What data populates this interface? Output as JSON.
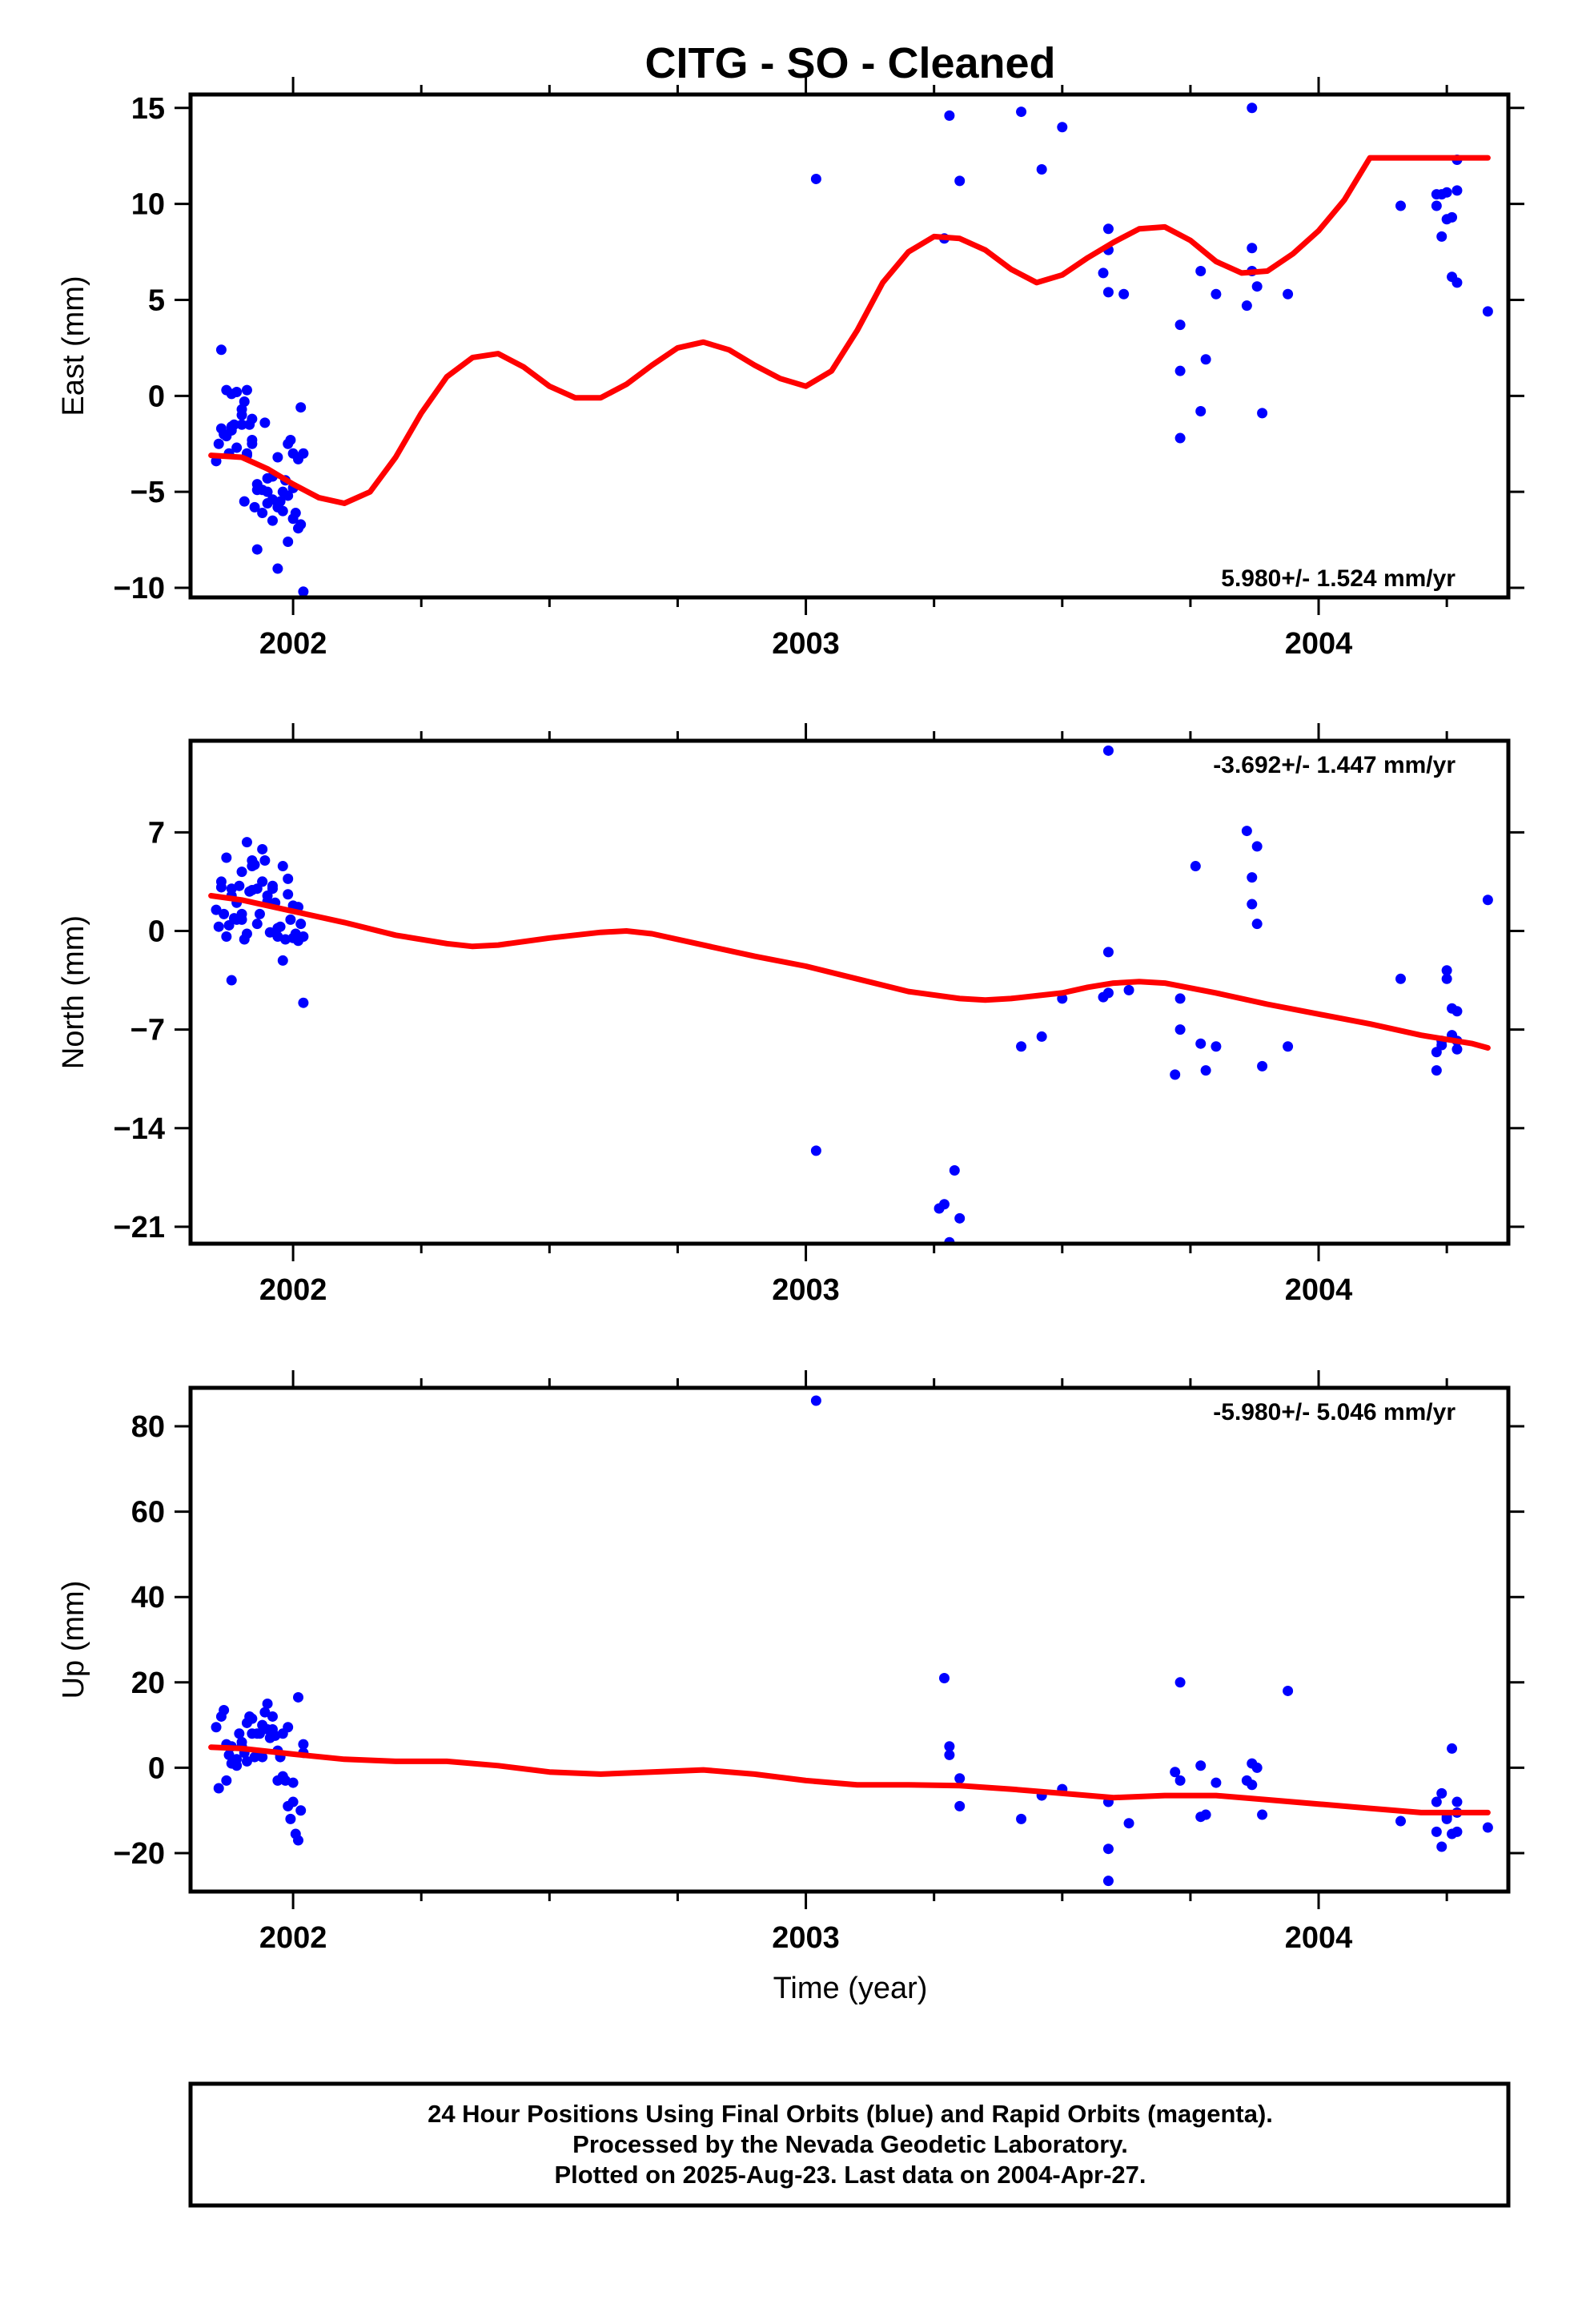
{
  "title": "CITG  - SO - Cleaned",
  "xlabel": "Time (year)",
  "footer": {
    "line1": "24 Hour Positions Using Final Orbits (blue) and Rapid Orbits (magenta).",
    "line2": "Processed by the Nevada Geodetic Laboratory.",
    "line3": "Plotted on 2025-Aug-23. Last data on 2004-Apr-27."
  },
  "colors": {
    "points": "#0000ff",
    "fit": "#ff0000",
    "frame": "#000000"
  },
  "chart_data": [
    {
      "type": "scatter",
      "ylabel": "East (mm)",
      "rate": "5.980+/- 1.524 mm/yr",
      "rate_position": "bottom-right",
      "xlim": [
        2001.8,
        2004.37
      ],
      "ylim": [
        -10.5,
        15.7
      ],
      "xticks": [
        2002,
        2003,
        2004
      ],
      "yticks": [
        -10,
        -5,
        0,
        5,
        10,
        15
      ],
      "grid": false,
      "series": [
        {
          "kind": "points",
          "x": [
            2001.85,
            2001.86,
            2001.855,
            2001.87,
            2001.88,
            2001.89,
            2001.9,
            2001.905,
            2001.91,
            2001.915,
            2001.92,
            2001.86,
            2001.87,
            2001.875,
            2001.88,
            2001.89,
            2001.9,
            2001.905,
            2001.91,
            2001.92,
            2001.93,
            2001.94,
            2001.95,
            2001.96,
            2001.97,
            2001.98,
            2001.99,
            2002.0,
            2002.01,
            2002.02,
            2001.88,
            2001.9,
            2001.92,
            2001.94,
            2001.96,
            2001.98,
            2002.0,
            2002.01,
            2002.015,
            2001.93,
            2001.95,
            2001.97,
            2001.99,
            2002.0,
            2001.91,
            2001.93,
            2001.95,
            2001.97,
            2001.99,
            2002.005,
            2001.96,
            2002.02,
            2001.945,
            2001.975,
            2001.985,
            2001.995,
            2001.865,
            2001.885,
            2001.925,
            2002.015,
            2003.02,
            2003.27,
            2003.28,
            2003.3,
            2003.42,
            2003.46,
            2003.5,
            2003.58,
            2003.59,
            2003.59,
            2003.62,
            2003.59,
            2003.73,
            2003.73,
            2003.73,
            2003.77,
            2003.77,
            2003.78,
            2003.8,
            2003.86,
            2003.87,
            2003.87,
            2003.88,
            2003.87,
            2003.89,
            2003.94,
            2004.16,
            2004.23,
            2004.23,
            2004.24,
            2004.24,
            2004.25,
            2004.25,
            2004.26,
            2004.26,
            2004.27,
            2004.27,
            2004.27,
            2004.33
          ],
          "y": [
            -3.4,
            2.4,
            -2.5,
            0.3,
            -1.6,
            0.2,
            -1.0,
            -0.3,
            0.3,
            -1.5,
            -2.3,
            -1.7,
            -2.1,
            -3.0,
            0.1,
            -2.7,
            -0.7,
            -5.5,
            -3.0,
            -2.5,
            -4.9,
            -6.1,
            -5.6,
            -4.2,
            -5.8,
            -6.0,
            -5.2,
            -6.4,
            -3.3,
            -3.0,
            -1.8,
            -1.5,
            -1.2,
            -4.9,
            -6.5,
            -5.0,
            -3.0,
            -6.9,
            -0.6,
            -4.6,
            -4.3,
            -3.2,
            -2.5,
            -4.8,
            -3.1,
            -8.0,
            -5.0,
            -9.0,
            -7.6,
            -6.1,
            -5.4,
            -10.2,
            -1.4,
            -5.5,
            -4.4,
            -2.3,
            -2.0,
            -1.5,
            -5.8,
            -6.7,
            11.3,
            8.2,
            14.6,
            11.2,
            14.8,
            11.8,
            14.0,
            6.4,
            8.7,
            5.4,
            5.3,
            7.6,
            1.3,
            3.7,
            -2.2,
            6.5,
            -0.8,
            1.9,
            5.3,
            4.7,
            6.5,
            15.0,
            5.7,
            7.7,
            -0.9,
            5.3,
            9.9,
            9.9,
            10.5,
            8.3,
            10.5,
            10.6,
            9.2,
            6.2,
            9.3,
            10.7,
            5.9,
            12.3,
            4.4
          ]
        },
        {
          "kind": "fit",
          "x": [
            2001.84,
            2001.9,
            2001.95,
            2002.0,
            2002.05,
            2002.1,
            2002.15,
            2002.2,
            2002.25,
            2002.3,
            2002.35,
            2002.4,
            2002.45,
            2002.5,
            2002.55,
            2002.6,
            2002.65,
            2002.7,
            2002.75,
            2002.8,
            2002.85,
            2002.9,
            2002.95,
            2003.0,
            2003.05,
            2003.1,
            2003.15,
            2003.2,
            2003.25,
            2003.3,
            2003.35,
            2003.4,
            2003.45,
            2003.5,
            2003.55,
            2003.6,
            2003.65,
            2003.7,
            2003.75,
            2003.8,
            2003.85,
            2003.9,
            2003.95,
            2004.0,
            2004.05,
            2004.1,
            2004.15,
            2004.2,
            2004.25,
            2004.3,
            2004.33
          ],
          "y": [
            -3.1,
            -3.2,
            -3.8,
            -4.6,
            -5.3,
            -5.6,
            -5.0,
            -3.2,
            -0.9,
            1.0,
            2.0,
            2.2,
            1.5,
            0.5,
            -0.1,
            -0.1,
            0.6,
            1.6,
            2.5,
            2.8,
            2.4,
            1.6,
            0.9,
            0.5,
            1.3,
            3.4,
            5.9,
            7.5,
            8.3,
            8.2,
            7.6,
            6.6,
            5.9,
            6.3,
            7.2,
            8.0,
            8.7,
            8.8,
            8.1,
            7.0,
            6.4,
            6.5,
            7.4,
            8.6,
            10.2,
            12.4,
            12.4,
            12.4,
            12.4,
            12.4,
            12.4
          ]
        }
      ]
    },
    {
      "type": "scatter",
      "ylabel": "North (mm)",
      "rate": "-3.692+/- 1.447 mm/yr",
      "rate_position": "top-right",
      "xlim": [
        2001.8,
        2004.37
      ],
      "ylim": [
        -22.2,
        13.5
      ],
      "xticks": [
        2002,
        2003,
        2004
      ],
      "yticks": [
        -21,
        -14,
        -7,
        0,
        7
      ],
      "grid": false,
      "series": [
        {
          "kind": "points",
          "x": [
            2001.85,
            2001.86,
            2001.87,
            2001.88,
            2001.89,
            2001.9,
            2001.91,
            2001.92,
            2001.93,
            2001.94,
            2001.95,
            2001.96,
            2001.97,
            2001.98,
            2001.99,
            2002.0,
            2002.01,
            2002.02,
            2001.855,
            2001.865,
            2001.875,
            2001.885,
            2001.895,
            2001.905,
            2001.915,
            2001.925,
            2001.935,
            2001.945,
            2001.955,
            2001.965,
            2001.975,
            2001.985,
            2001.995,
            2002.005,
            2002.015,
            2001.88,
            2001.9,
            2001.92,
            2001.94,
            2001.96,
            2001.98,
            2002.0,
            2001.87,
            2001.89,
            2001.91,
            2001.93,
            2001.95,
            2001.97,
            2001.99,
            2002.01,
            2001.86,
            2001.88,
            2001.9,
            2001.92,
            2001.94,
            2002.02,
            2003.02,
            2003.26,
            2003.27,
            2003.29,
            2003.3,
            2003.28,
            2003.42,
            2003.46,
            2003.5,
            2003.58,
            2003.59,
            2003.59,
            2003.59,
            2003.63,
            2003.73,
            2003.73,
            2003.72,
            2003.76,
            2003.77,
            2003.78,
            2003.8,
            2003.86,
            2003.87,
            2003.87,
            2003.88,
            2003.88,
            2003.89,
            2003.94,
            2004.16,
            2004.23,
            2004.23,
            2004.24,
            2004.24,
            2004.25,
            2004.25,
            2004.26,
            2004.26,
            2004.27,
            2004.27,
            2004.27,
            2004.33
          ],
          "y": [
            1.5,
            3.5,
            5.2,
            -3.5,
            2.0,
            0.8,
            6.3,
            4.6,
            3.0,
            5.8,
            2.5,
            3.0,
            0.2,
            -2.1,
            3.7,
            -0.5,
            1.7,
            -5.1,
            0.3,
            1.2,
            0.4,
            0.9,
            3.2,
            -0.6,
            2.8,
            4.7,
            1.2,
            5.0,
            -0.1,
            2.0,
            0.3,
            -0.6,
            0.8,
            -0.2,
            0.5,
            2.5,
            4.2,
            2.9,
            3.5,
            3.2,
            4.6,
            1.8,
            -0.4,
            0.8,
            -0.2,
            0.5,
            2.1,
            -0.4,
            2.6,
            -0.7,
            3.1,
            3.0,
            1.2,
            5.0,
            3.5,
            -0.4,
            -15.6,
            -19.7,
            -19.4,
            -17.0,
            -20.4,
            -22.1,
            -8.2,
            -7.5,
            -4.8,
            -4.7,
            -1.5,
            -4.4,
            12.8,
            -4.2,
            -4.8,
            -7.0,
            -10.2,
            4.6,
            -8.0,
            -9.9,
            -8.2,
            7.1,
            3.8,
            1.9,
            0.5,
            6.0,
            -9.6,
            -8.2,
            -3.4,
            -8.6,
            -9.9,
            -8.1,
            -7.8,
            -3.4,
            -2.8,
            -5.5,
            -7.4,
            -8.4,
            -5.7,
            -7.8,
            2.2
          ]
        },
        {
          "kind": "fit",
          "x": [
            2001.84,
            2001.9,
            2002.0,
            2002.1,
            2002.2,
            2002.3,
            2002.35,
            2002.4,
            2002.5,
            2002.6,
            2002.65,
            2002.7,
            2002.8,
            2002.9,
            2003.0,
            2003.1,
            2003.2,
            2003.3,
            2003.35,
            2003.4,
            2003.45,
            2003.5,
            2003.55,
            2003.6,
            2003.65,
            2003.7,
            2003.8,
            2003.9,
            2004.0,
            2004.1,
            2004.2,
            2004.3,
            2004.33
          ],
          "y": [
            2.5,
            2.2,
            1.4,
            0.6,
            -0.3,
            -0.9,
            -1.1,
            -1.0,
            -0.5,
            -0.1,
            0.0,
            -0.2,
            -1.0,
            -1.8,
            -2.5,
            -3.4,
            -4.3,
            -4.8,
            -4.9,
            -4.8,
            -4.6,
            -4.4,
            -4.0,
            -3.7,
            -3.6,
            -3.7,
            -4.4,
            -5.2,
            -5.9,
            -6.6,
            -7.4,
            -8.0,
            -8.3
          ]
        }
      ]
    },
    {
      "type": "scatter",
      "ylabel": "Up (mm)",
      "rate": "-5.980+/- 5.046 mm/yr",
      "rate_position": "top-right",
      "xlim": [
        2001.8,
        2004.37
      ],
      "ylim": [
        -29,
        89
      ],
      "xticks": [
        2002,
        2003,
        2004
      ],
      "yticks": [
        -20,
        0,
        20,
        40,
        60,
        80
      ],
      "grid": false,
      "series": [
        {
          "kind": "points",
          "x": [
            2001.85,
            2001.86,
            2001.87,
            2001.88,
            2001.89,
            2001.9,
            2001.91,
            2001.92,
            2001.93,
            2001.94,
            2001.95,
            2001.96,
            2001.97,
            2001.98,
            2001.99,
            2002.0,
            2002.01,
            2002.02,
            2001.855,
            2001.865,
            2001.875,
            2001.885,
            2001.895,
            2001.905,
            2001.915,
            2001.925,
            2001.935,
            2001.945,
            2001.955,
            2001.965,
            2001.975,
            2001.985,
            2001.995,
            2002.005,
            2002.015,
            2001.87,
            2001.89,
            2001.91,
            2001.93,
            2001.95,
            2001.97,
            2001.99,
            2002.01,
            2001.88,
            2001.9,
            2001.92,
            2001.94,
            2001.96,
            2001.98,
            2002.0,
            2002.02,
            2003.02,
            2003.27,
            2003.28,
            2003.28,
            2003.3,
            2003.3,
            2003.42,
            2003.46,
            2003.5,
            2003.59,
            2003.59,
            2003.59,
            2003.63,
            2003.72,
            2003.73,
            2003.73,
            2003.77,
            2003.77,
            2003.78,
            2003.8,
            2003.86,
            2003.87,
            2003.87,
            2003.88,
            2003.89,
            2003.94,
            2004.16,
            2004.23,
            2004.23,
            2004.24,
            2004.24,
            2004.25,
            2004.25,
            2004.26,
            2004.26,
            2004.27,
            2004.27,
            2004.27,
            2004.33
          ],
          "y": [
            9.5,
            12.0,
            -3.0,
            5.0,
            2.0,
            6.0,
            1.5,
            11.5,
            8.0,
            10.0,
            15.0,
            9.0,
            4.0,
            8.0,
            -9.0,
            -8.0,
            16.5,
            5.5,
            -4.8,
            13.5,
            3.0,
            1.0,
            8.0,
            3.5,
            12.0,
            2.5,
            8.0,
            13.0,
            7.0,
            7.5,
            2.5,
            -3.0,
            -12.0,
            -15.5,
            -10.0,
            5.5,
            0.5,
            10.5,
            3.0,
            9.0,
            -3.0,
            9.5,
            -17.0,
            1.0,
            5.0,
            8.0,
            2.5,
            12.0,
            -2.0,
            -3.5,
            3.5,
            86.0,
            21.0,
            3.0,
            5.0,
            -2.5,
            -9.0,
            -12.0,
            -6.5,
            -5.0,
            -8.0,
            -19.0,
            -26.5,
            -13.0,
            -1.0,
            -3.0,
            20.0,
            0.5,
            -11.5,
            -11.0,
            -3.5,
            -3.0,
            1.0,
            -4.0,
            0.0,
            -11.0,
            18.0,
            -12.5,
            -8.0,
            -15.0,
            -18.5,
            -6.0,
            -11.5,
            -12.0,
            4.5,
            -15.5,
            -8.0,
            -10.5,
            -15.0,
            -14.0
          ]
        },
        {
          "kind": "fit",
          "x": [
            2001.84,
            2001.9,
            2002.0,
            2002.1,
            2002.2,
            2002.3,
            2002.4,
            2002.5,
            2002.6,
            2002.7,
            2002.8,
            2002.9,
            2003.0,
            2003.1,
            2003.2,
            2003.3,
            2003.4,
            2003.5,
            2003.6,
            2003.7,
            2003.8,
            2003.9,
            2004.0,
            2004.1,
            2004.2,
            2004.3,
            2004.33
          ],
          "y": [
            4.8,
            4.5,
            3.2,
            2.0,
            1.5,
            1.5,
            0.5,
            -1.0,
            -1.5,
            -1.0,
            -0.5,
            -1.5,
            -3.0,
            -4.0,
            -4.0,
            -4.2,
            -5.0,
            -6.0,
            -7.0,
            -6.5,
            -6.5,
            -7.5,
            -8.5,
            -9.5,
            -10.5,
            -10.5,
            -10.5
          ]
        }
      ]
    }
  ]
}
